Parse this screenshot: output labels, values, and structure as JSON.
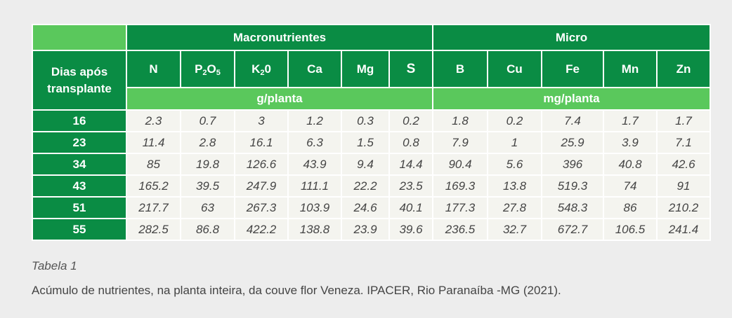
{
  "table": {
    "group_headers": {
      "macro": "Macronutrientes",
      "micro": "Micro"
    },
    "row_header": "Dias após transplante",
    "units": {
      "macro": "g/planta",
      "micro": "mg/planta"
    },
    "columns": [
      {
        "main": "N",
        "sub": "",
        "tail": ""
      },
      {
        "main": "P",
        "sub": "2",
        "tail": "O5"
      },
      {
        "main": "K",
        "sub": "2",
        "tail": "0"
      },
      {
        "main": "Ca",
        "sub": "",
        "tail": ""
      },
      {
        "main": "Mg",
        "sub": "",
        "tail": ""
      },
      {
        "main": "S",
        "sub": "",
        "tail": ""
      },
      {
        "main": "B",
        "sub": "",
        "tail": ""
      },
      {
        "main": "Cu",
        "sub": "",
        "tail": ""
      },
      {
        "main": "Fe",
        "sub": "",
        "tail": ""
      },
      {
        "main": "Mn",
        "sub": "",
        "tail": ""
      },
      {
        "main": "Zn",
        "sub": "",
        "tail": ""
      }
    ],
    "rows": [
      {
        "day": "16",
        "values": [
          "2.3",
          "0.7",
          "3",
          "1.2",
          "0.3",
          "0.2",
          "1.8",
          "0.2",
          "7.4",
          "1.7",
          "1.7"
        ]
      },
      {
        "day": "23",
        "values": [
          "11.4",
          "2.8",
          "16.1",
          "6.3",
          "1.5",
          "0.8",
          "7.9",
          "1",
          "25.9",
          "3.9",
          "7.1"
        ]
      },
      {
        "day": "34",
        "values": [
          "85",
          "19.8",
          "126.6",
          "43.9",
          "9.4",
          "14.4",
          "90.4",
          "5.6",
          "396",
          "40.8",
          "42.6"
        ]
      },
      {
        "day": "43",
        "values": [
          "165.2",
          "39.5",
          "247.9",
          "111.1",
          "22.2",
          "23.5",
          "169.3",
          "13.8",
          "519.3",
          "74",
          "91"
        ]
      },
      {
        "day": "51",
        "values": [
          "217.7",
          "63",
          "267.3",
          "103.9",
          "24.6",
          "40.1",
          "177.3",
          "27.8",
          "548.3",
          "86",
          "210.2"
        ]
      },
      {
        "day": "55",
        "values": [
          "282.5",
          "86.8",
          "422.2",
          "138.8",
          "23.9",
          "39.6",
          "236.5",
          "32.7",
          "672.7",
          "106.5",
          "241.4"
        ]
      }
    ]
  },
  "caption": {
    "label": "Tabela 1",
    "text": "Acúmulo de nutrientes, na planta inteira, da couve flor Veneza. IPACER, Rio Paranaíba -MG (2021)."
  },
  "colors": {
    "dark_green": "#0a8c44",
    "light_green": "#5ac85c",
    "cell_bg": "#f4f4ef",
    "page_bg": "#ededed"
  }
}
